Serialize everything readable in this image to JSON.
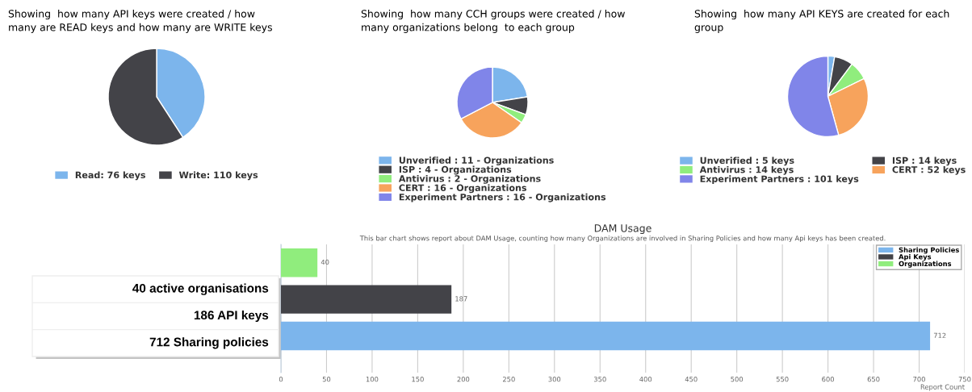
{
  "chart_data": [
    {
      "type": "pie",
      "title": "Showing  how many API keys were created / how many are READ keys and how many are WRITE keys",
      "categories": [
        "Read: 76 keys",
        "Write: 110 keys"
      ],
      "values": [
        76,
        110
      ],
      "colors": [
        "#7cb5ec",
        "#434348"
      ],
      "legend": "bottom"
    },
    {
      "type": "pie",
      "title": "Showing  how many CCH groups were created / how many organizations belong  to each group",
      "categories": [
        "Unverified : 11 - Organizations",
        "ISP : 4 - Organizations",
        "Antivirus : 2 - Organizations",
        "CERT : 16 - Organizations",
        "Experiment Partners : 16 - Organizations"
      ],
      "values": [
        11,
        4,
        2,
        16,
        16
      ],
      "colors": [
        "#7cb5ec",
        "#434348",
        "#90ed7d",
        "#f7a35c",
        "#8085e9"
      ],
      "legend": "bottom"
    },
    {
      "type": "pie",
      "title": "Showing  how many API KEYS are created for each group",
      "categories": [
        "Unverified : 5 keys",
        "ISP : 14 keys",
        "Antivirus : 14 keys",
        "CERT : 52 keys",
        "Experiment Partners : 101 keys"
      ],
      "values": [
        5,
        14,
        14,
        52,
        101
      ],
      "colors": [
        "#7cb5ec",
        "#434348",
        "#90ed7d",
        "#f7a35c",
        "#8085e9"
      ],
      "legend": "bottom"
    },
    {
      "type": "other",
      "annotations": [
        "40 active organisations",
        "186 API keys",
        "712 Sharing policies"
      ]
    },
    {
      "type": "bar",
      "orientation": "horizontal",
      "title": "DAM Usage",
      "subtitle": "This bar chart shows report about DAM Usage, counting how many Organizations are involved in Sharing Policies and how many Api keys has been created.",
      "xlabel": "Report Count",
      "categories": [
        null,
        null,
        null
      ],
      "series": [
        {
          "name": "Sharing Policies",
          "color": "#7cb5ec",
          "values": [
            null,
            null,
            712
          ]
        },
        {
          "name": "Api Keys",
          "color": "#434348",
          "values": [
            null,
            187,
            null
          ]
        },
        {
          "name": "Organizations",
          "color": "#90ed7d",
          "values": [
            40,
            null,
            null
          ]
        }
      ],
      "xlim": [
        0,
        750
      ],
      "xticks": [
        0,
        50,
        100,
        150,
        200,
        250,
        300,
        350,
        400,
        450,
        500,
        550,
        600,
        650,
        700,
        750
      ],
      "grid": "x",
      "legend": "top right",
      "data_labels": true
    }
  ]
}
